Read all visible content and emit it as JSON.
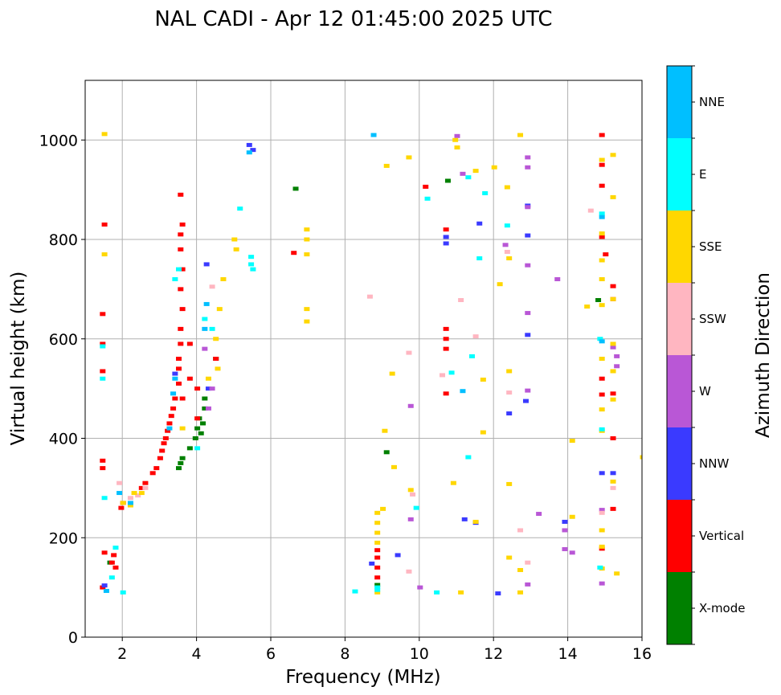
{
  "chart_data": {
    "type": "scatter",
    "title": "NAL CADI - Apr 12 01:45:00 2025 UTC",
    "xlabel": "Frequency (MHz)",
    "ylabel": "Virtual height (km)",
    "colorbar_label": "Azimuth Direction",
    "xlim": [
      1,
      16
    ],
    "ylim": [
      0,
      1120
    ],
    "xticks": [
      2,
      4,
      6,
      8,
      10,
      12,
      14,
      16
    ],
    "yticks": [
      0,
      200,
      400,
      600,
      800,
      1000
    ],
    "grid": true,
    "categories": [
      {
        "name": "X-mode",
        "color": "#008000"
      },
      {
        "name": "Vertical",
        "color": "#ff0000"
      },
      {
        "name": "NNW",
        "color": "#3a3aff"
      },
      {
        "name": "W",
        "color": "#b957d6"
      },
      {
        "name": "SSW",
        "color": "#ffb6c1"
      },
      {
        "name": "SSE",
        "color": "#ffd700"
      },
      {
        "name": "E",
        "color": "#00ffff"
      },
      {
        "name": "NNE",
        "color": "#00bfff"
      }
    ],
    "series": [
      {
        "name": "X-mode",
        "points": [
          [
            3.5,
            340
          ],
          [
            3.55,
            350
          ],
          [
            3.6,
            360
          ],
          [
            3.95,
            400
          ],
          [
            4.0,
            420
          ],
          [
            4.05,
            440
          ],
          [
            4.1,
            410
          ],
          [
            4.15,
            430
          ],
          [
            4.2,
            460
          ],
          [
            4.2,
            480
          ],
          [
            3.8,
            380
          ],
          [
            6.65,
            902
          ],
          [
            10.75,
            918
          ],
          [
            8.85,
            105
          ],
          [
            9.1,
            372
          ],
          [
            14.8,
            678
          ],
          [
            1.65,
            150
          ],
          [
            4.5,
            560
          ]
        ]
      },
      {
        "name": "Vertical",
        "points": [
          [
            1.45,
            100
          ],
          [
            1.5,
            170
          ],
          [
            1.45,
            340
          ],
          [
            1.45,
            355
          ],
          [
            1.45,
            535
          ],
          [
            1.45,
            590
          ],
          [
            1.45,
            650
          ],
          [
            1.5,
            830
          ],
          [
            1.7,
            150
          ],
          [
            1.75,
            165
          ],
          [
            1.8,
            140
          ],
          [
            1.95,
            260
          ],
          [
            2.0,
            270
          ],
          [
            2.5,
            300
          ],
          [
            2.6,
            310
          ],
          [
            2.8,
            330
          ],
          [
            2.9,
            340
          ],
          [
            3.0,
            360
          ],
          [
            3.05,
            375
          ],
          [
            3.1,
            390
          ],
          [
            3.15,
            400
          ],
          [
            3.2,
            415
          ],
          [
            3.25,
            430
          ],
          [
            3.3,
            445
          ],
          [
            3.35,
            460
          ],
          [
            3.4,
            480
          ],
          [
            3.5,
            510
          ],
          [
            3.5,
            540
          ],
          [
            3.5,
            560
          ],
          [
            3.55,
            590
          ],
          [
            3.6,
            480
          ],
          [
            3.55,
            620
          ],
          [
            3.6,
            660
          ],
          [
            3.55,
            700
          ],
          [
            3.6,
            740
          ],
          [
            3.55,
            780
          ],
          [
            3.55,
            810
          ],
          [
            3.6,
            830
          ],
          [
            3.55,
            890
          ],
          [
            3.8,
            590
          ],
          [
            3.8,
            520
          ],
          [
            4.0,
            440
          ],
          [
            4.0,
            500
          ],
          [
            4.5,
            560
          ],
          [
            6.6,
            773
          ],
          [
            8.85,
            120
          ],
          [
            8.85,
            140
          ],
          [
            8.85,
            160
          ],
          [
            8.85,
            175
          ],
          [
            10.15,
            906
          ],
          [
            10.7,
            490
          ],
          [
            10.7,
            580
          ],
          [
            10.7,
            600
          ],
          [
            10.7,
            620
          ],
          [
            10.7,
            820
          ],
          [
            14.9,
            1010
          ],
          [
            14.9,
            950
          ],
          [
            14.9,
            908
          ],
          [
            14.9,
            805
          ],
          [
            14.9,
            520
          ],
          [
            14.9,
            488
          ],
          [
            14.9,
            178
          ],
          [
            15.0,
            770
          ],
          [
            15.2,
            706
          ],
          [
            15.2,
            680
          ],
          [
            15.2,
            490
          ],
          [
            15.2,
            400
          ],
          [
            15.2,
            258
          ]
        ]
      },
      {
        "name": "NNW",
        "points": [
          [
            1.5,
            104
          ],
          [
            3.4,
            530
          ],
          [
            4.25,
            750
          ],
          [
            4.3,
            500
          ],
          [
            5.4,
            990
          ],
          [
            5.5,
            980
          ],
          [
            8.7,
            148
          ],
          [
            9.4,
            165
          ],
          [
            10.7,
            792
          ],
          [
            10.7,
            805
          ],
          [
            11.5,
            230
          ],
          [
            12.1,
            88
          ],
          [
            12.4,
            450
          ],
          [
            12.85,
            475
          ],
          [
            12.9,
            608
          ],
          [
            12.9,
            808
          ],
          [
            12.9,
            868
          ],
          [
            13.9,
            232
          ],
          [
            14.9,
            330
          ],
          [
            15.2,
            330
          ],
          [
            11.6,
            832
          ],
          [
            11.2,
            237
          ]
        ]
      },
      {
        "name": "W",
        "points": [
          [
            4.2,
            580
          ],
          [
            4.3,
            460
          ],
          [
            4.4,
            500
          ],
          [
            9.75,
            465
          ],
          [
            9.75,
            237
          ],
          [
            10.0,
            100
          ],
          [
            11.0,
            1008
          ],
          [
            11.15,
            932
          ],
          [
            12.3,
            789
          ],
          [
            12.9,
            965
          ],
          [
            12.9,
            945
          ],
          [
            12.9,
            865
          ],
          [
            12.9,
            748
          ],
          [
            12.9,
            652
          ],
          [
            12.9,
            496
          ],
          [
            12.9,
            106
          ],
          [
            13.2,
            248
          ],
          [
            13.7,
            720
          ],
          [
            13.9,
            215
          ],
          [
            13.9,
            177
          ],
          [
            14.1,
            170
          ],
          [
            14.9,
            256
          ],
          [
            14.9,
            108
          ],
          [
            15.3,
            565
          ],
          [
            15.3,
            545
          ],
          [
            15.2,
            583
          ]
        ]
      },
      {
        "name": "SSW",
        "points": [
          [
            1.9,
            310
          ],
          [
            2.2,
            280
          ],
          [
            2.4,
            285
          ],
          [
            2.6,
            300
          ],
          [
            4.4,
            705
          ],
          [
            8.65,
            685
          ],
          [
            9.7,
            572
          ],
          [
            9.8,
            287
          ],
          [
            9.7,
            132
          ],
          [
            10.6,
            527
          ],
          [
            11.1,
            678
          ],
          [
            11.5,
            605
          ],
          [
            12.35,
            775
          ],
          [
            12.4,
            492
          ],
          [
            12.7,
            215
          ],
          [
            12.9,
            150
          ],
          [
            14.6,
            858
          ],
          [
            15.2,
            300
          ],
          [
            14.9,
            250
          ]
        ]
      },
      {
        "name": "SSE",
        "points": [
          [
            1.5,
            1012
          ],
          [
            1.5,
            770
          ],
          [
            2.0,
            270
          ],
          [
            2.2,
            265
          ],
          [
            2.3,
            290
          ],
          [
            2.5,
            290
          ],
          [
            3.6,
            420
          ],
          [
            4.3,
            520
          ],
          [
            4.55,
            540
          ],
          [
            4.5,
            600
          ],
          [
            4.6,
            660
          ],
          [
            4.7,
            720
          ],
          [
            5.0,
            800
          ],
          [
            5.05,
            780
          ],
          [
            6.95,
            820
          ],
          [
            6.95,
            800
          ],
          [
            6.95,
            770
          ],
          [
            6.95,
            660
          ],
          [
            6.95,
            635
          ],
          [
            8.85,
            90
          ],
          [
            8.85,
            190
          ],
          [
            8.85,
            210
          ],
          [
            8.85,
            230
          ],
          [
            8.85,
            250
          ],
          [
            9.0,
            258
          ],
          [
            9.05,
            415
          ],
          [
            9.25,
            530
          ],
          [
            9.3,
            342
          ],
          [
            9.7,
            965
          ],
          [
            9.75,
            296
          ],
          [
            9.1,
            948
          ],
          [
            10.9,
            310
          ],
          [
            10.95,
            1000
          ],
          [
            11.0,
            985
          ],
          [
            11.1,
            90
          ],
          [
            11.5,
            938
          ],
          [
            11.5,
            232
          ],
          [
            11.7,
            412
          ],
          [
            11.7,
            518
          ],
          [
            12.0,
            945
          ],
          [
            12.15,
            710
          ],
          [
            12.35,
            905
          ],
          [
            12.4,
            762
          ],
          [
            12.4,
            535
          ],
          [
            12.4,
            308
          ],
          [
            12.4,
            160
          ],
          [
            12.7,
            1010
          ],
          [
            12.7,
            90
          ],
          [
            12.7,
            135
          ],
          [
            14.5,
            665
          ],
          [
            14.1,
            395
          ],
          [
            14.1,
            242
          ],
          [
            14.9,
            960
          ],
          [
            14.9,
            812
          ],
          [
            14.9,
            758
          ],
          [
            14.9,
            720
          ],
          [
            14.9,
            668
          ],
          [
            14.9,
            560
          ],
          [
            14.9,
            458
          ],
          [
            14.9,
            415
          ],
          [
            14.9,
            215
          ],
          [
            14.9,
            182
          ],
          [
            14.9,
            138
          ],
          [
            15.2,
            970
          ],
          [
            15.2,
            885
          ],
          [
            15.2,
            680
          ],
          [
            15.2,
            590
          ],
          [
            15.2,
            535
          ],
          [
            15.2,
            478
          ],
          [
            15.2,
            313
          ],
          [
            15.3,
            128
          ],
          [
            16.0,
            362
          ]
        ]
      },
      {
        "name": "E",
        "points": [
          [
            1.5,
            280
          ],
          [
            1.45,
            520
          ],
          [
            1.45,
            585
          ],
          [
            1.7,
            120
          ],
          [
            1.8,
            180
          ],
          [
            2.0,
            90
          ],
          [
            3.4,
            720
          ],
          [
            3.5,
            740
          ],
          [
            4.0,
            380
          ],
          [
            4.2,
            640
          ],
          [
            4.4,
            620
          ],
          [
            5.15,
            862
          ],
          [
            5.45,
            750
          ],
          [
            5.5,
            740
          ],
          [
            5.45,
            765
          ],
          [
            8.25,
            92
          ],
          [
            8.85,
            100
          ],
          [
            8.85,
            95
          ],
          [
            9.9,
            260
          ],
          [
            10.2,
            882
          ],
          [
            10.45,
            90
          ],
          [
            10.85,
            532
          ],
          [
            11.3,
            925
          ],
          [
            11.3,
            362
          ],
          [
            11.4,
            565
          ],
          [
            11.6,
            762
          ],
          [
            11.75,
            893
          ],
          [
            12.35,
            828
          ],
          [
            14.85,
            600
          ],
          [
            14.9,
            852
          ],
          [
            14.85,
            140
          ],
          [
            14.9,
            418
          ]
        ]
      },
      {
        "name": "NNE",
        "points": [
          [
            1.55,
            93
          ],
          [
            1.9,
            290
          ],
          [
            2.2,
            270
          ],
          [
            3.25,
            420
          ],
          [
            3.35,
            490
          ],
          [
            3.4,
            520
          ],
          [
            4.2,
            620
          ],
          [
            4.25,
            670
          ],
          [
            5.4,
            975
          ],
          [
            8.75,
            1010
          ],
          [
            11.15,
            495
          ],
          [
            14.9,
            845
          ],
          [
            14.9,
            595
          ]
        ]
      }
    ]
  }
}
